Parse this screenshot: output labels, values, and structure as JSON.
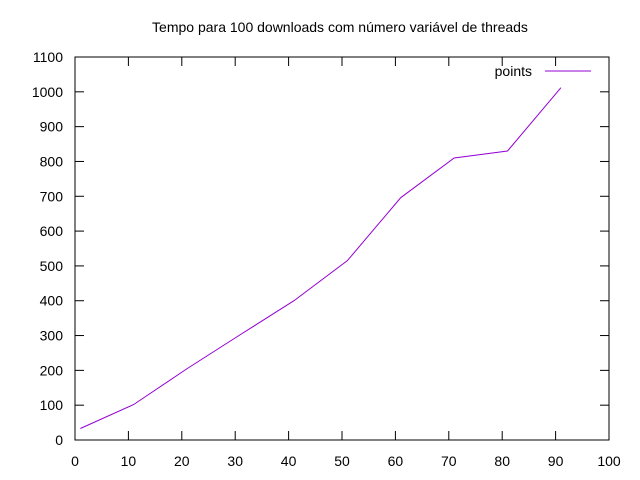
{
  "chart_data": {
    "type": "line",
    "title": "Tempo para 100 downloads com número variável de threads",
    "xlabel": "",
    "ylabel": "",
    "xlim": [
      0,
      100
    ],
    "ylim": [
      0,
      1100
    ],
    "xticks": [
      0,
      10,
      20,
      30,
      40,
      50,
      60,
      70,
      80,
      90,
      100
    ],
    "yticks": [
      0,
      100,
      200,
      300,
      400,
      500,
      600,
      700,
      800,
      900,
      1000,
      1100
    ],
    "grid": false,
    "legend_position": "top-right",
    "series": [
      {
        "name": "points",
        "color": "#9400d3",
        "x": [
          1,
          11,
          21,
          31,
          41,
          51,
          61,
          71,
          81,
          91
        ],
        "y": [
          33,
          102,
          205,
          303,
          400,
          515,
          696,
          810,
          830,
          1012
        ]
      }
    ]
  }
}
